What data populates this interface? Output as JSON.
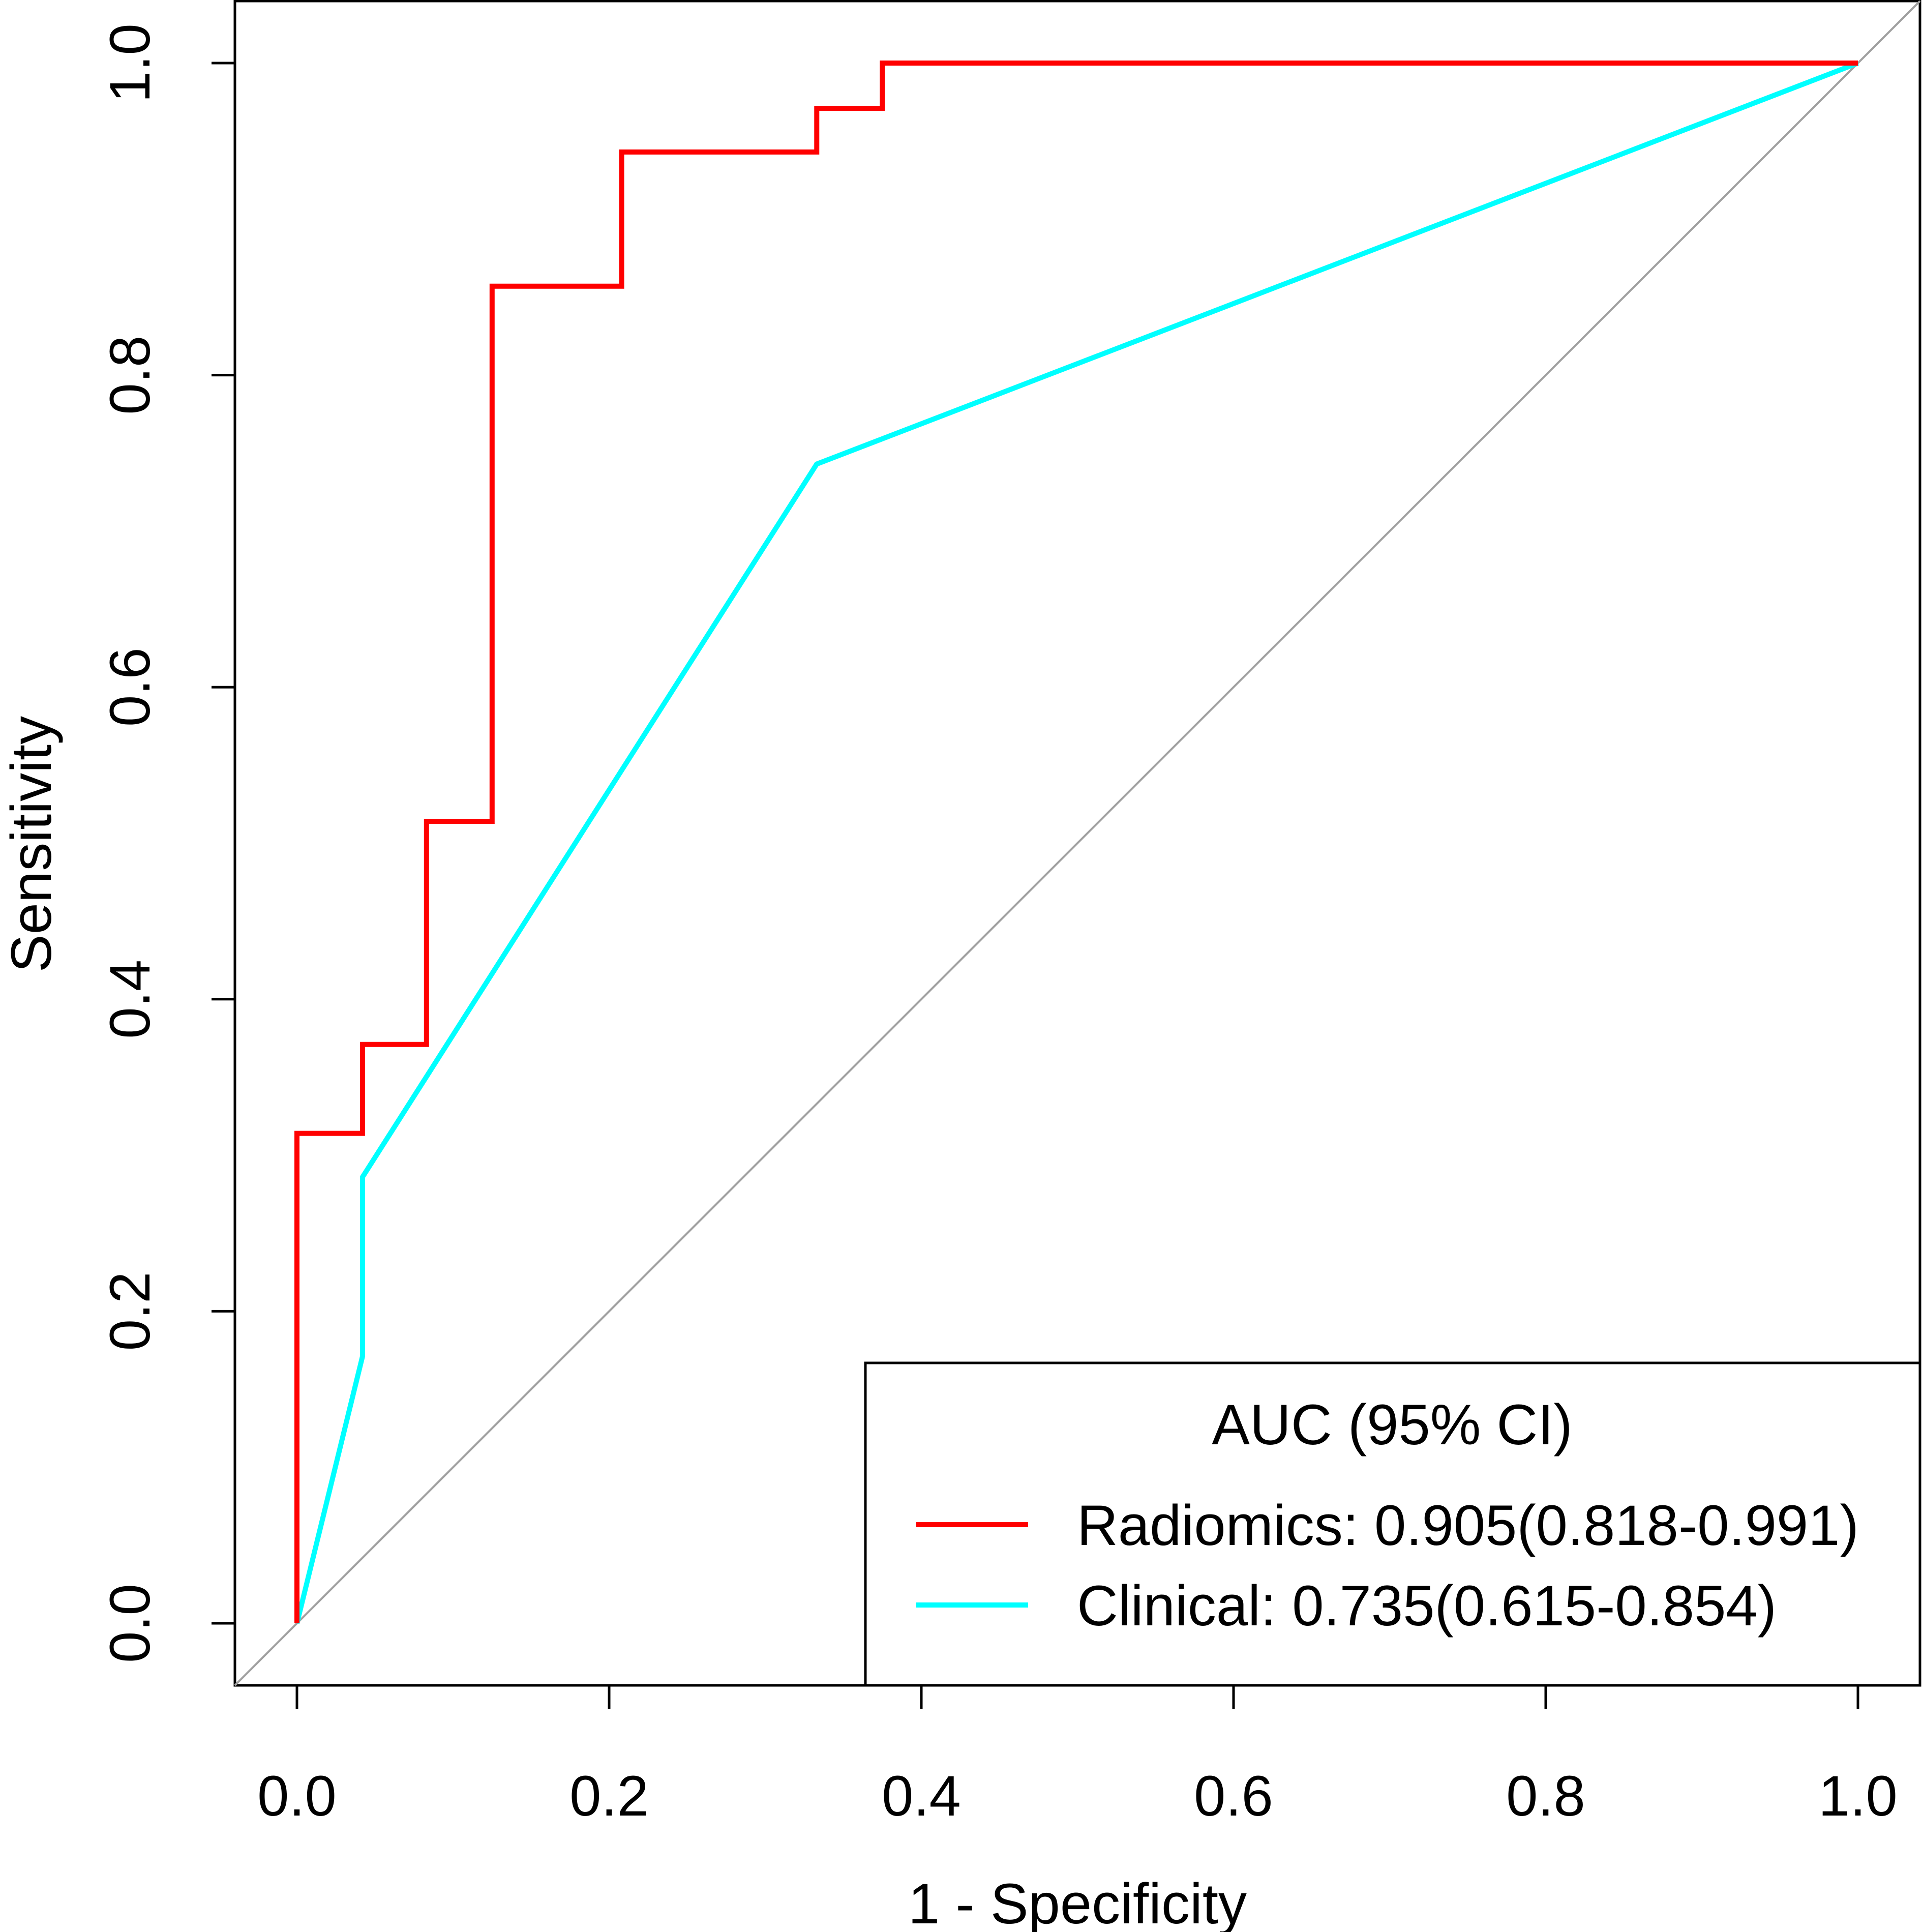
{
  "chart_data": {
    "type": "line",
    "title": "",
    "xlabel": "1 - Specificity",
    "ylabel": "Sensitivity",
    "xlim": [
      0,
      1
    ],
    "ylim": [
      0,
      1
    ],
    "xticks": [
      "0.0",
      "0.2",
      "0.4",
      "0.6",
      "0.8",
      "1.0"
    ],
    "yticks": [
      "0.0",
      "0.2",
      "0.4",
      "0.6",
      "0.8",
      "1.0"
    ],
    "grid": false,
    "reference_line": {
      "name": "chance",
      "x": [
        0,
        1
      ],
      "y": [
        0,
        1
      ],
      "color": "#a0a0a0"
    },
    "legend": {
      "title": "AUC (95% CI)",
      "placement": "bottom-right",
      "entries": [
        {
          "label": "Radiomics: 0.905(0.818-0.991)",
          "color": "#ff0000"
        },
        {
          "label": "Clinical: 0.735(0.615-0.854)",
          "color": "#00ffff"
        }
      ]
    },
    "series": [
      {
        "name": "Radiomics",
        "color": "#ff0000",
        "auc": 0.905,
        "ci": [
          0.818,
          0.991
        ],
        "x": [
          0,
          0,
          0.042,
          0.042,
          0.083,
          0.083,
          0.125,
          0.125,
          0.208,
          0.208,
          0.333,
          0.333,
          0.375,
          0.375,
          1.0
        ],
        "y": [
          0,
          0.314,
          0.314,
          0.371,
          0.371,
          0.514,
          0.514,
          0.857,
          0.857,
          0.943,
          0.943,
          0.971,
          0.971,
          1.0,
          1.0
        ]
      },
      {
        "name": "Clinical",
        "color": "#00ffff",
        "auc": 0.735,
        "ci": [
          0.615,
          0.854
        ],
        "x": [
          0,
          0.042,
          0.042,
          0.333,
          1.0
        ],
        "y": [
          0,
          0.171,
          0.286,
          0.743,
          1.0
        ]
      }
    ]
  }
}
